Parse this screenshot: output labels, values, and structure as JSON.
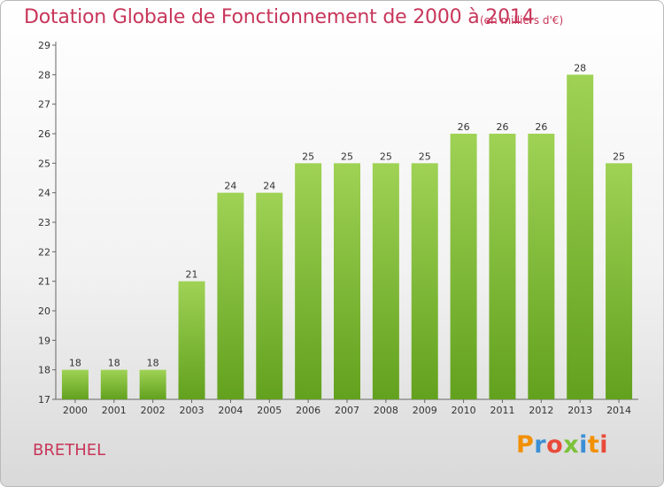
{
  "chart_data": {
    "type": "bar",
    "title": "Dotation Globale de Fonctionnement de 2000 à 2014",
    "subtitle": "(en milliers d'€)",
    "categories": [
      "2000",
      "2001",
      "2002",
      "2003",
      "2004",
      "2005",
      "2006",
      "2007",
      "2008",
      "2009",
      "2010",
      "2011",
      "2012",
      "2013",
      "2014"
    ],
    "values": [
      18,
      18,
      18,
      21,
      24,
      24,
      25,
      25,
      25,
      25,
      26,
      26,
      26,
      28,
      25
    ],
    "ylim": [
      17,
      29
    ],
    "yticks": [
      17,
      18,
      19,
      20,
      21,
      22,
      23,
      24,
      25,
      26,
      27,
      28,
      29
    ],
    "grid": false,
    "bar_color": "#7cc13a",
    "bar_color_light": "#9fd255",
    "bar_color_dark": "#62a11e"
  },
  "footer": {
    "commune": "BRETHEL",
    "logo_letters": [
      "P",
      "r",
      "o",
      "x",
      "i",
      "t",
      "i"
    ],
    "logo_colors": [
      "#f29000",
      "#3b8fd6",
      "#e84a3a",
      "#7cc13a",
      "#3b8fd6",
      "#f29000",
      "#e84a3a"
    ]
  }
}
